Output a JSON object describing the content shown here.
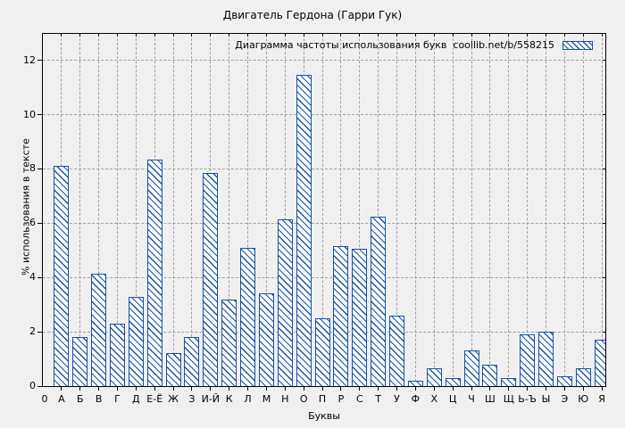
{
  "chart_data": {
    "type": "bar",
    "title": "Двигатель Гердона (Гарри Гук)",
    "legend_label": "Диаграмма частоты использования букв  coollib.net/b/558215",
    "legend_position": "top-right-inside",
    "xlabel": "Буквы",
    "ylabel": "% использования в тексте",
    "origin_tick_label": "0",
    "categories": [
      "А",
      "Б",
      "В",
      "Г",
      "Д",
      "Е-Ё",
      "Ж",
      "З",
      "И-Й",
      "К",
      "Л",
      "М",
      "Н",
      "О",
      "П",
      "Р",
      "С",
      "Т",
      "У",
      "Ф",
      "Х",
      "Ц",
      "Ч",
      "Ш",
      "Щ",
      "Ь-Ъ",
      "Ы",
      "Э",
      "Ю",
      "Я"
    ],
    "values": [
      8.1,
      1.8,
      4.15,
      2.3,
      3.3,
      8.35,
      1.2,
      1.8,
      7.85,
      3.2,
      5.1,
      3.4,
      6.15,
      11.45,
      2.5,
      5.15,
      5.05,
      6.25,
      2.6,
      0.2,
      0.65,
      0.3,
      1.3,
      0.8,
      0.3,
      1.9,
      2.0,
      0.35,
      0.65,
      1.7
    ],
    "yticks": [
      0,
      2,
      4,
      6,
      8,
      10,
      12
    ],
    "ylim": [
      0,
      13
    ],
    "grid": "dashed",
    "colors": {
      "background": "#f0f0f0",
      "bar_fill": "#ffffff",
      "bar_hatch": "#1552a5",
      "grid_line": "#a0a0a0",
      "axis_and_text": "#000000"
    }
  }
}
